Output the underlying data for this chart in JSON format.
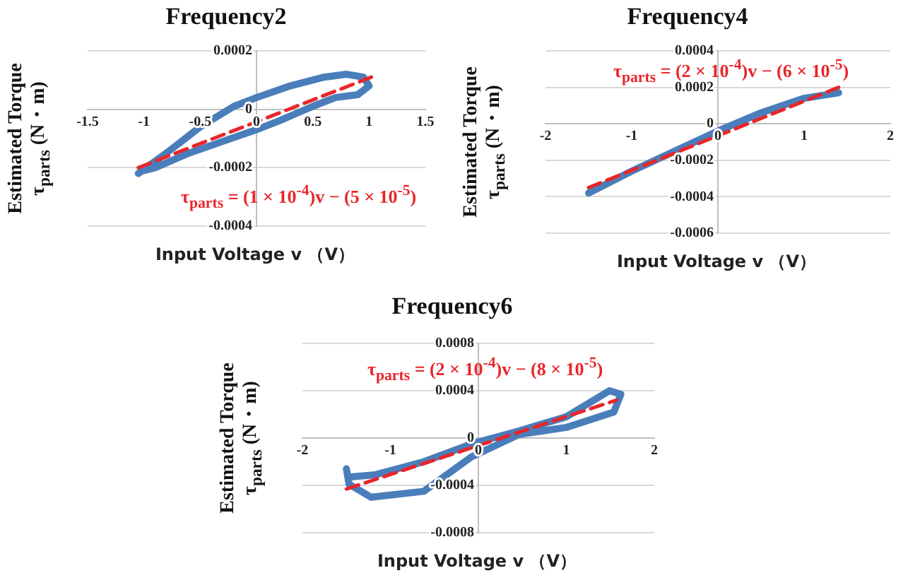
{
  "chart_data": [
    {
      "type": "line",
      "title": "Frequency2",
      "xlabel": "Input Voltage  v （V）",
      "ylabel": "Estimated Torque τ$_{parts}$ (N・m)",
      "annotations": [
        "τ$_{parts}$ = (1 × 10$^{-4}$)v − (5 × 10$^{-5}$)"
      ],
      "xlim": [
        -1.5,
        1.5
      ],
      "xticks": [
        -1.5,
        -1,
        -0.5,
        0,
        0.5,
        1,
        1.5
      ],
      "ylim": [
        -0.0004,
        0.0002
      ],
      "yticks": [
        -0.0004,
        -0.0002,
        0,
        0.0002
      ],
      "grid": "y",
      "series": [
        {
          "color": "#4a7ebb",
          "line_style": "solid",
          "x": [
            -1.05,
            -0.8,
            -0.5,
            -0.2,
            0,
            0.3,
            0.6,
            0.8,
            0.95,
            1.0,
            0.9,
            0.7,
            0.5,
            0.2,
            0,
            -0.3,
            -0.6,
            -0.9,
            -1.0
          ],
          "values": [
            -0.00022,
            -0.00015,
            -6e-05,
            1e-05,
            4e-05,
            8e-05,
            0.00011,
            0.00012,
            0.00011,
            8e-05,
            5e-05,
            4e-05,
            1e-05,
            -4e-05,
            -7e-05,
            -0.00011,
            -0.00015,
            -0.0002,
            -0.00021
          ]
        },
        {
          "color": "#e8262a",
          "line_style": "dashed",
          "x": [
            -1.05,
            1.02
          ],
          "values": [
            -0.0002,
            0.00011
          ]
        }
      ]
    },
    {
      "type": "line",
      "title": "Frequency4",
      "xlabel": "Input Voltage  v （V）",
      "ylabel": "Estimated Torque τ$_{parts}$ (N・m)",
      "annotations": [
        "τ$_{parts}$ = (2 × 10$^{-4}$)v − (6 × 10$^{-5}$)"
      ],
      "xlim": [
        -2,
        2
      ],
      "xticks": [
        -2,
        -1,
        0,
        1,
        2
      ],
      "ylim": [
        -0.0006,
        0.0004
      ],
      "yticks": [
        -0.0006,
        -0.0004,
        -0.0002,
        0,
        0.0002,
        0.0004
      ],
      "grid": "y",
      "series": [
        {
          "color": "#4a7ebb",
          "line_style": "solid",
          "x": [
            -1.5,
            -1,
            -0.5,
            0,
            0.5,
            1,
            1.4
          ],
          "values": [
            -0.00038,
            -0.00026,
            -0.00015,
            -4e-05,
            6e-05,
            0.00014,
            0.00017
          ]
        },
        {
          "color": "#e8262a",
          "line_style": "dashed",
          "x": [
            -1.5,
            1.4
          ],
          "values": [
            -0.00035,
            0.0002
          ]
        }
      ]
    },
    {
      "type": "line",
      "title": "Frequency6",
      "xlabel": "Input Voltage  v （V）",
      "ylabel": "Estimated Torque τ$_{parts}$ (N・m)",
      "annotations": [
        "τ$_{parts}$ = (2 × 10$^{-4}$)v − (8 × 10$^{-5}$)"
      ],
      "xlim": [
        -2,
        2
      ],
      "xticks": [
        -2,
        -1,
        0,
        1,
        2
      ],
      "ylim": [
        -0.0008,
        0.0008
      ],
      "yticks": [
        -0.0008,
        -0.0004,
        0,
        0.0004,
        0.0008
      ],
      "grid": "y",
      "series": [
        {
          "color": "#4a7ebb",
          "line_style": "solid",
          "x": [
            -1.5,
            -1.47,
            -1.22,
            -0.62,
            -0.08,
            0.46,
            1.0,
            1.54,
            1.62,
            1.49,
            1.0,
            0.46,
            -0.08,
            -0.62,
            -1.17,
            -1.47
          ],
          "values": [
            -0.00026,
            -0.00039,
            -0.0005,
            -0.00045,
            -0.00016,
            3e-05,
            9e-05,
            0.00022,
            0.00037,
            0.0004,
            0.00018,
            6e-05,
            -5e-05,
            -0.0002,
            -0.00031,
            -0.00033
          ]
        },
        {
          "color": "#e8262a",
          "line_style": "dashed",
          "x": [
            -1.5,
            1.57
          ],
          "values": [
            -0.00043,
            0.00032
          ]
        }
      ]
    }
  ]
}
